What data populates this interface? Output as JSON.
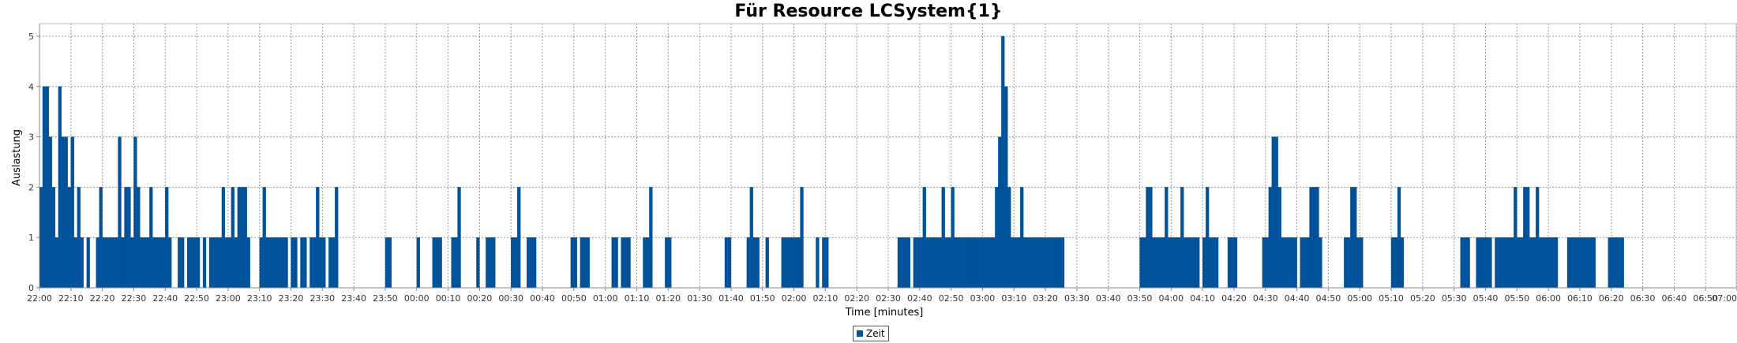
{
  "chart_data": {
    "type": "bar",
    "title": "Für Resource LCSystem{1}",
    "xlabel": "Time [minutes]",
    "ylabel": "Auslastung",
    "ylim": [
      0,
      5.25
    ],
    "yticks": [
      0,
      1,
      2,
      3,
      4,
      5
    ],
    "x_unit": "minutes",
    "x_range_minutes": [
      0,
      540
    ],
    "xtick_labels": [
      "22:00",
      "22:10",
      "22:20",
      "22:30",
      "22:40",
      "22:50",
      "23:00",
      "23:10",
      "23:20",
      "23:30",
      "23:40",
      "23:50",
      "00:00",
      "00:10",
      "00:20",
      "00:30",
      "00:40",
      "00:50",
      "01:00",
      "01:10",
      "01:20",
      "01:30",
      "01:40",
      "01:50",
      "02:00",
      "02:10",
      "02:20",
      "02:30",
      "02:40",
      "02:50",
      "03:00",
      "03:10",
      "03:20",
      "03:30",
      "03:40",
      "03:50",
      "04:00",
      "04:10",
      "04:20",
      "04:30",
      "04:40",
      "04:50",
      "05:00",
      "05:10",
      "05:20",
      "05:30",
      "05:40",
      "05:50",
      "06:00",
      "06:10",
      "06:20",
      "06:30",
      "06:40",
      "06:50",
      "07:00"
    ],
    "grid": true,
    "legend_position": "bottom-center",
    "series": [
      {
        "name": "Zeit",
        "color": "#00529b",
        "values": [
          [
            0,
            2
          ],
          [
            1,
            4
          ],
          [
            2,
            4
          ],
          [
            3,
            3
          ],
          [
            4,
            2
          ],
          [
            5,
            1
          ],
          [
            6,
            4
          ],
          [
            7,
            3
          ],
          [
            8,
            3
          ],
          [
            9,
            2
          ],
          [
            10,
            3
          ],
          [
            11,
            1
          ],
          [
            12,
            2
          ],
          [
            13,
            1
          ],
          [
            15,
            1
          ],
          [
            18,
            1
          ],
          [
            19,
            2
          ],
          [
            20,
            1
          ],
          [
            21,
            1
          ],
          [
            22,
            1
          ],
          [
            23,
            1
          ],
          [
            24,
            1
          ],
          [
            25,
            3
          ],
          [
            26,
            1
          ],
          [
            27,
            2
          ],
          [
            28,
            2
          ],
          [
            29,
            1
          ],
          [
            30,
            3
          ],
          [
            31,
            2
          ],
          [
            32,
            1
          ],
          [
            33,
            1
          ],
          [
            34,
            1
          ],
          [
            35,
            2
          ],
          [
            36,
            1
          ],
          [
            37,
            1
          ],
          [
            38,
            1
          ],
          [
            39,
            1
          ],
          [
            40,
            2
          ],
          [
            41,
            1
          ],
          [
            44,
            1
          ],
          [
            45,
            1
          ],
          [
            47,
            1
          ],
          [
            48,
            1
          ],
          [
            49,
            1
          ],
          [
            50,
            1
          ],
          [
            52,
            1
          ],
          [
            54,
            1
          ],
          [
            55,
            1
          ],
          [
            56,
            1
          ],
          [
            57,
            1
          ],
          [
            58,
            2
          ],
          [
            59,
            1
          ],
          [
            60,
            1
          ],
          [
            61,
            2
          ],
          [
            62,
            1
          ],
          [
            63,
            2
          ],
          [
            64,
            2
          ],
          [
            65,
            2
          ],
          [
            66,
            1
          ],
          [
            70,
            1
          ],
          [
            71,
            2
          ],
          [
            72,
            1
          ],
          [
            73,
            1
          ],
          [
            74,
            1
          ],
          [
            75,
            1
          ],
          [
            76,
            1
          ],
          [
            77,
            1
          ],
          [
            78,
            1
          ],
          [
            80,
            1
          ],
          [
            81,
            1
          ],
          [
            83,
            1
          ],
          [
            84,
            1
          ],
          [
            86,
            1
          ],
          [
            87,
            1
          ],
          [
            88,
            2
          ],
          [
            89,
            1
          ],
          [
            90,
            1
          ],
          [
            92,
            1
          ],
          [
            93,
            1
          ],
          [
            94,
            2
          ],
          [
            110,
            1
          ],
          [
            111,
            1
          ],
          [
            120,
            1
          ],
          [
            125,
            1
          ],
          [
            126,
            1
          ],
          [
            127,
            1
          ],
          [
            131,
            1
          ],
          [
            132,
            1
          ],
          [
            133,
            2
          ],
          [
            139,
            1
          ],
          [
            142,
            1
          ],
          [
            143,
            1
          ],
          [
            144,
            1
          ],
          [
            150,
            1
          ],
          [
            151,
            1
          ],
          [
            152,
            2
          ],
          [
            155,
            1
          ],
          [
            156,
            1
          ],
          [
            157,
            1
          ],
          [
            169,
            1
          ],
          [
            170,
            1
          ],
          [
            172,
            1
          ],
          [
            173,
            1
          ],
          [
            174,
            1
          ],
          [
            182,
            1
          ],
          [
            183,
            1
          ],
          [
            185,
            1
          ],
          [
            186,
            1
          ],
          [
            187,
            1
          ],
          [
            192,
            1
          ],
          [
            193,
            1
          ],
          [
            194,
            2
          ],
          [
            199,
            1
          ],
          [
            200,
            1
          ],
          [
            218,
            1
          ],
          [
            219,
            1
          ],
          [
            225,
            1
          ],
          [
            226,
            2
          ],
          [
            227,
            1
          ],
          [
            228,
            1
          ],
          [
            231,
            1
          ],
          [
            236,
            1
          ],
          [
            237,
            1
          ],
          [
            238,
            1
          ],
          [
            239,
            1
          ],
          [
            240,
            1
          ],
          [
            241,
            1
          ],
          [
            242,
            2
          ],
          [
            247,
            1
          ],
          [
            249,
            1
          ],
          [
            250,
            1
          ],
          [
            273,
            1
          ],
          [
            274,
            1
          ],
          [
            275,
            1
          ],
          [
            276,
            1
          ],
          [
            278,
            1
          ],
          [
            279,
            1
          ],
          [
            280,
            1
          ],
          [
            281,
            2
          ],
          [
            282,
            1
          ],
          [
            283,
            1
          ],
          [
            284,
            1
          ],
          [
            285,
            1
          ],
          [
            286,
            1
          ],
          [
            287,
            2
          ],
          [
            288,
            1
          ],
          [
            289,
            1
          ],
          [
            290,
            2
          ],
          [
            291,
            1
          ],
          [
            292,
            1
          ],
          [
            293,
            1
          ],
          [
            294,
            1
          ],
          [
            295,
            1
          ],
          [
            296,
            1
          ],
          [
            297,
            1
          ],
          [
            298,
            1
          ],
          [
            299,
            1
          ],
          [
            300,
            1
          ],
          [
            301,
            1
          ],
          [
            302,
            1
          ],
          [
            303,
            1
          ],
          [
            304,
            2
          ],
          [
            305,
            3
          ],
          [
            306,
            5
          ],
          [
            307,
            4
          ],
          [
            308,
            2
          ],
          [
            309,
            1
          ],
          [
            310,
            1
          ],
          [
            311,
            1
          ],
          [
            312,
            2
          ],
          [
            313,
            1
          ],
          [
            314,
            1
          ],
          [
            315,
            1
          ],
          [
            316,
            1
          ],
          [
            317,
            1
          ],
          [
            318,
            1
          ],
          [
            319,
            1
          ],
          [
            320,
            1
          ],
          [
            321,
            1
          ],
          [
            322,
            1
          ],
          [
            323,
            1
          ],
          [
            324,
            1
          ],
          [
            325,
            1
          ],
          [
            350,
            1
          ],
          [
            351,
            1
          ],
          [
            352,
            2
          ],
          [
            353,
            2
          ],
          [
            354,
            1
          ],
          [
            355,
            1
          ],
          [
            356,
            1
          ],
          [
            357,
            1
          ],
          [
            358,
            2
          ],
          [
            359,
            1
          ],
          [
            360,
            1
          ],
          [
            361,
            1
          ],
          [
            362,
            1
          ],
          [
            363,
            2
          ],
          [
            364,
            1
          ],
          [
            365,
            1
          ],
          [
            366,
            1
          ],
          [
            367,
            1
          ],
          [
            368,
            1
          ],
          [
            370,
            1
          ],
          [
            371,
            2
          ],
          [
            372,
            1
          ],
          [
            373,
            1
          ],
          [
            374,
            1
          ],
          [
            378,
            1
          ],
          [
            379,
            1
          ],
          [
            380,
            1
          ],
          [
            389,
            1
          ],
          [
            390,
            1
          ],
          [
            391,
            2
          ],
          [
            392,
            3
          ],
          [
            393,
            3
          ],
          [
            394,
            2
          ],
          [
            395,
            1
          ],
          [
            396,
            1
          ],
          [
            397,
            1
          ],
          [
            398,
            1
          ],
          [
            399,
            1
          ],
          [
            401,
            1
          ],
          [
            402,
            1
          ],
          [
            403,
            1
          ],
          [
            404,
            2
          ],
          [
            405,
            2
          ],
          [
            406,
            2
          ],
          [
            407,
            1
          ],
          [
            415,
            1
          ],
          [
            416,
            1
          ],
          [
            417,
            2
          ],
          [
            418,
            2
          ],
          [
            419,
            1
          ],
          [
            420,
            1
          ],
          [
            430,
            1
          ],
          [
            431,
            1
          ],
          [
            432,
            2
          ],
          [
            433,
            1
          ],
          [
            452,
            1
          ],
          [
            453,
            1
          ],
          [
            454,
            1
          ],
          [
            457,
            1
          ],
          [
            458,
            1
          ],
          [
            459,
            1
          ],
          [
            460,
            1
          ],
          [
            461,
            1
          ],
          [
            463,
            1
          ],
          [
            464,
            1
          ],
          [
            465,
            1
          ],
          [
            466,
            1
          ],
          [
            467,
            1
          ],
          [
            468,
            1
          ],
          [
            469,
            2
          ],
          [
            470,
            1
          ],
          [
            471,
            1
          ],
          [
            472,
            2
          ],
          [
            473,
            2
          ],
          [
            474,
            1
          ],
          [
            475,
            1
          ],
          [
            476,
            2
          ],
          [
            477,
            1
          ],
          [
            478,
            1
          ],
          [
            479,
            1
          ],
          [
            480,
            1
          ],
          [
            481,
            1
          ],
          [
            482,
            1
          ],
          [
            486,
            1
          ],
          [
            487,
            1
          ],
          [
            488,
            1
          ],
          [
            489,
            1
          ],
          [
            490,
            1
          ],
          [
            491,
            1
          ],
          [
            492,
            1
          ],
          [
            493,
            1
          ],
          [
            494,
            1
          ],
          [
            499,
            1
          ],
          [
            500,
            1
          ],
          [
            501,
            1
          ],
          [
            502,
            1
          ],
          [
            503,
            1
          ]
        ]
      }
    ]
  },
  "legend": {
    "label": "Zeit",
    "color": "#00529b"
  }
}
